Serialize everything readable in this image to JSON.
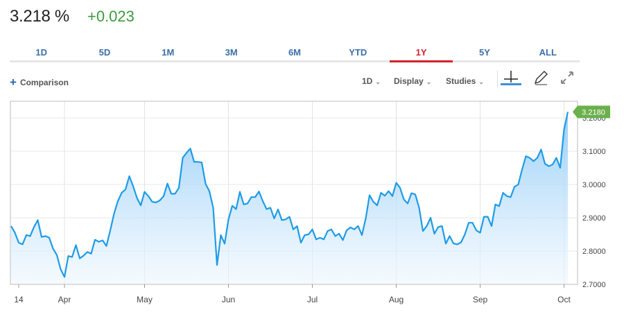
{
  "quote": {
    "price": "3.218 %",
    "change": "+0.023"
  },
  "tabs": [
    {
      "label": "1D",
      "active": false
    },
    {
      "label": "5D",
      "active": false
    },
    {
      "label": "1M",
      "active": false
    },
    {
      "label": "3M",
      "active": false
    },
    {
      "label": "6M",
      "active": false
    },
    {
      "label": "YTD",
      "active": false
    },
    {
      "label": "1Y",
      "active": true
    },
    {
      "label": "5Y",
      "active": false
    },
    {
      "label": "ALL",
      "active": false
    }
  ],
  "toolbar": {
    "comparison_label": "Comparison",
    "interval_label": "1D",
    "display_label": "Display",
    "studies_label": "Studies",
    "icons": [
      "crosshair-icon",
      "pencil-icon",
      "expand-icon"
    ]
  },
  "colors": {
    "line": "#1e9be6",
    "fill_top": "#8cc9f7",
    "fill_bottom": "#eef7fe",
    "positive": "#3c9b3c",
    "active_tab": "#d3212c",
    "tab_text": "#3a6fa8",
    "last_price_badge": "#6ab04c"
  },
  "chart_data": {
    "type": "area",
    "title": "",
    "xlabel": "",
    "ylabel": "",
    "ylim": [
      2.7,
      3.25
    ],
    "y_ticks": [
      "2.7000",
      "2.8000",
      "2.9000",
      "3.0000",
      "3.1000",
      "3.2000"
    ],
    "x_ticks": [
      "14",
      "Apr",
      "May",
      "Jun",
      "Jul",
      "Aug",
      "Sep",
      "Oct"
    ],
    "last_value_label": "3.2180",
    "grid": true,
    "series": [
      {
        "values": [
          2.875,
          2.855,
          2.825,
          2.82,
          2.848,
          2.845,
          2.872,
          2.893,
          2.842,
          2.845,
          2.84,
          2.807,
          2.788,
          2.745,
          2.722,
          2.785,
          2.782,
          2.818,
          2.778,
          2.786,
          2.797,
          2.792,
          2.834,
          2.828,
          2.832,
          2.815,
          2.862,
          2.912,
          2.95,
          2.975,
          2.985,
          3.025,
          2.995,
          2.96,
          2.937,
          2.978,
          2.965,
          2.948,
          2.946,
          2.952,
          2.965,
          3.003,
          2.972,
          2.972,
          2.99,
          3.08,
          3.095,
          3.108,
          3.068,
          3.068,
          3.066,
          3.002,
          2.98,
          2.93,
          2.758,
          2.848,
          2.822,
          2.895,
          2.936,
          2.926,
          2.978,
          2.94,
          2.943,
          2.962,
          2.962,
          2.979,
          2.95,
          2.926,
          2.93,
          2.898,
          2.925,
          2.893,
          2.895,
          2.903,
          2.865,
          2.875,
          2.825,
          2.848,
          2.85,
          2.865,
          2.835,
          2.84,
          2.835,
          2.86,
          2.865,
          2.845,
          2.852,
          2.833,
          2.862,
          2.871,
          2.865,
          2.875,
          2.848,
          2.898,
          2.968,
          2.948,
          2.937,
          2.975,
          2.966,
          2.98,
          2.965,
          3.005,
          2.99,
          2.955,
          2.943,
          2.974,
          2.97,
          2.93,
          2.86,
          2.875,
          2.9,
          2.852,
          2.872,
          2.875,
          2.822,
          2.845,
          2.823,
          2.82,
          2.826,
          2.85,
          2.885,
          2.885,
          2.862,
          2.855,
          2.903,
          2.903,
          2.875,
          2.94,
          2.935,
          2.975,
          2.965,
          2.962,
          2.993,
          3.0,
          3.045,
          3.085,
          3.08,
          3.07,
          3.08,
          3.105,
          3.062,
          3.055,
          3.06,
          3.08,
          3.05,
          3.165,
          3.218
        ]
      }
    ]
  }
}
